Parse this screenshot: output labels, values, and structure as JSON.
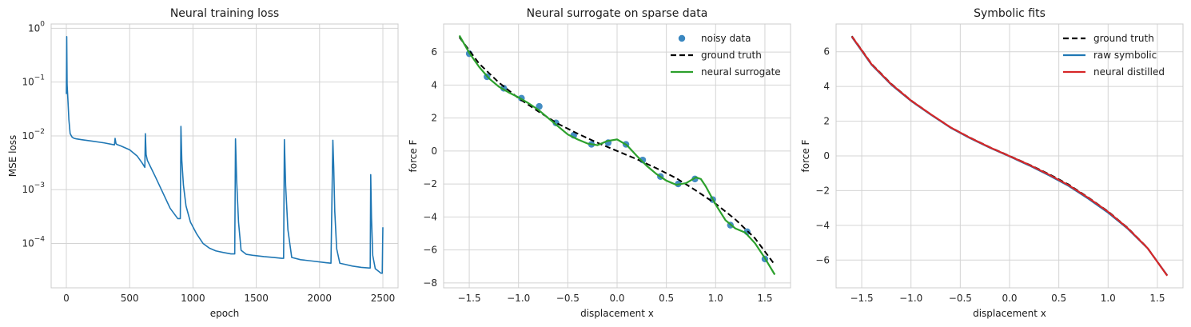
{
  "chart_data": [
    {
      "type": "line",
      "title": "Neural training loss",
      "xlabel": "epoch",
      "ylabel": "MSE loss",
      "yscale": "log",
      "xlim": [
        -120,
        2620
      ],
      "ylim": [
        1.5e-05,
        1.2
      ],
      "xticks": [
        0,
        500,
        1000,
        1500,
        2000,
        2500
      ],
      "yticks": [
        0.0001,
        0.001,
        0.01,
        0.1,
        1
      ],
      "ytick_labels": [
        [
          "10",
          "−4"
        ],
        [
          "10",
          "−3"
        ],
        [
          "10",
          "−2"
        ],
        [
          "10",
          "−1"
        ],
        [
          "10",
          "0"
        ]
      ],
      "grid": true,
      "color": "#1f77b4",
      "series": [
        {
          "x": [
            0,
            3,
            6,
            10,
            15,
            20,
            30,
            45,
            60,
            80,
            120,
            200,
            300,
            380,
            385,
            392,
            400,
            430,
            500,
            560,
            600,
            620,
            624,
            630,
            640,
            660,
            700,
            760,
            820,
            880,
            900,
            905,
            912,
            925,
            945,
            980,
            1030,
            1080,
            1130,
            1180,
            1240,
            1300,
            1330,
            1336,
            1345,
            1360,
            1380,
            1420,
            1480,
            1560,
            1640,
            1700,
            1716,
            1722,
            1732,
            1750,
            1780,
            1850,
            1950,
            2050,
            2090,
            2105,
            2112,
            2120,
            2135,
            2160,
            2200,
            2260,
            2330,
            2390,
            2400,
            2404,
            2410,
            2420,
            2440,
            2470,
            2485,
            2490,
            2495,
            2500
          ],
          "y": [
            0.06,
            0.7,
            0.09,
            0.06,
            0.035,
            0.02,
            0.011,
            0.0095,
            0.009,
            0.0088,
            0.0085,
            0.008,
            0.0074,
            0.0068,
            0.009,
            0.0072,
            0.0069,
            0.0065,
            0.0055,
            0.0042,
            0.0031,
            0.0026,
            0.011,
            0.0045,
            0.0035,
            0.0028,
            0.0018,
            0.0009,
            0.00045,
            0.00029,
            0.00029,
            0.015,
            0.0035,
            0.0012,
            0.0005,
            0.00025,
            0.00015,
            0.0001,
            8.2e-05,
            7.3e-05,
            6.8e-05,
            6.4e-05,
            6.4e-05,
            0.0088,
            0.0015,
            0.00025,
            7.5e-05,
            6.3e-05,
            6e-05,
            5.7e-05,
            5.5e-05,
            5.3e-05,
            5.3e-05,
            0.0085,
            0.0012,
            0.00018,
            5.5e-05,
            5e-05,
            4.7e-05,
            4.4e-05,
            4.3e-05,
            0.0083,
            0.0025,
            0.0004,
            8e-05,
            4.3e-05,
            4.1e-05,
            3.8e-05,
            3.6e-05,
            3.5e-05,
            3.5e-05,
            0.0019,
            0.0003,
            6e-05,
            3.4e-05,
            3e-05,
            2.8e-05,
            2.8e-05,
            2.8e-05,
            0.0002
          ]
        }
      ]
    },
    {
      "type": "scatter",
      "title": "Neural surrogate on sparse data",
      "xlabel": "displacement x",
      "ylabel": "force F",
      "xlim": [
        -1.76,
        1.76
      ],
      "ylim": [
        -8.3,
        7.7
      ],
      "xticks": [
        -1.5,
        -1.0,
        -0.5,
        0.0,
        0.5,
        1.0,
        1.5
      ],
      "xtick_labels": [
        "−1.5",
        "−1.0",
        "−0.5",
        "0.0",
        "0.5",
        "1.0",
        "1.5"
      ],
      "yticks": [
        -8,
        -6,
        -4,
        -2,
        0,
        2,
        4,
        6
      ],
      "ytick_labels": [
        "−8",
        "−6",
        "−4",
        "−2",
        "0",
        "2",
        "4",
        "6"
      ],
      "grid": true,
      "legend": "top-right",
      "series": [
        {
          "name": "noisy data",
          "kind": "points",
          "color": "#3a87c0",
          "x": [
            -1.5,
            -1.32,
            -1.15,
            -0.97,
            -0.79,
            -0.62,
            -0.44,
            -0.26,
            -0.09,
            0.09,
            0.26,
            0.44,
            0.62,
            0.79,
            0.97,
            1.15,
            1.32,
            1.5
          ],
          "y": [
            5.9,
            4.5,
            3.8,
            3.2,
            2.7,
            1.7,
            0.95,
            0.4,
            0.5,
            0.4,
            -0.55,
            -1.55,
            -2.0,
            -1.7,
            -2.95,
            -4.5,
            -4.9,
            -6.55
          ]
        },
        {
          "name": "ground truth",
          "kind": "line",
          "style": "dashed",
          "color": "#000000",
          "x": [
            -1.6,
            -1.4,
            -1.2,
            -1.0,
            -0.8,
            -0.6,
            -0.4,
            -0.2,
            0.0,
            0.2,
            0.4,
            0.6,
            0.8,
            1.0,
            1.2,
            1.4,
            1.6
          ],
          "y": [
            6.9,
            5.3,
            4.15,
            3.2,
            2.4,
            1.65,
            1.05,
            0.5,
            0.0,
            -0.5,
            -1.05,
            -1.65,
            -2.4,
            -3.2,
            -4.15,
            -5.3,
            -6.9
          ]
        },
        {
          "name": "neural surrogate",
          "kind": "line",
          "color": "#2ca02c",
          "x": [
            -1.6,
            -1.5,
            -1.4,
            -1.3,
            -1.2,
            -1.1,
            -1.0,
            -0.9,
            -0.8,
            -0.7,
            -0.6,
            -0.5,
            -0.4,
            -0.3,
            -0.2,
            -0.1,
            0.0,
            0.1,
            0.2,
            0.3,
            0.4,
            0.5,
            0.6,
            0.7,
            0.8,
            0.85,
            0.9,
            1.0,
            1.1,
            1.2,
            1.3,
            1.4,
            1.5,
            1.6
          ],
          "y": [
            7.0,
            5.95,
            5.1,
            4.4,
            3.9,
            3.55,
            3.25,
            2.9,
            2.5,
            2.0,
            1.5,
            1.0,
            0.7,
            0.45,
            0.35,
            0.6,
            0.7,
            0.35,
            -0.3,
            -0.9,
            -1.4,
            -1.8,
            -2.05,
            -1.95,
            -1.6,
            -1.7,
            -2.15,
            -3.25,
            -4.2,
            -4.7,
            -4.95,
            -5.6,
            -6.5,
            -7.5
          ]
        }
      ]
    },
    {
      "type": "line",
      "title": "Symbolic fits",
      "xlabel": "displacement x",
      "ylabel": "force F",
      "xlim": [
        -1.76,
        1.76
      ],
      "ylim": [
        -7.6,
        7.6
      ],
      "xticks": [
        -1.5,
        -1.0,
        -0.5,
        0.0,
        0.5,
        1.0,
        1.5
      ],
      "xtick_labels": [
        "−1.5",
        "−1.0",
        "−0.5",
        "0.0",
        "0.5",
        "1.0",
        "1.5"
      ],
      "yticks": [
        -6,
        -4,
        -2,
        0,
        2,
        4,
        6
      ],
      "ytick_labels": [
        "−6",
        "−4",
        "−2",
        "0",
        "2",
        "4",
        "6"
      ],
      "grid": true,
      "legend": "top-right",
      "series": [
        {
          "name": "ground truth",
          "kind": "line",
          "style": "dashed",
          "color": "#000000",
          "x": [
            -1.6,
            -1.4,
            -1.2,
            -1.0,
            -0.8,
            -0.6,
            -0.4,
            -0.2,
            0.0,
            0.2,
            0.4,
            0.6,
            0.8,
            1.0,
            1.2,
            1.4,
            1.6
          ],
          "y": [
            6.9,
            5.3,
            4.15,
            3.2,
            2.4,
            1.65,
            1.05,
            0.5,
            0.0,
            -0.5,
            -1.05,
            -1.65,
            -2.4,
            -3.2,
            -4.15,
            -5.3,
            -6.9
          ]
        },
        {
          "name": "raw symbolic",
          "kind": "line",
          "color": "#1f77b4",
          "x": [
            -1.6,
            -1.4,
            -1.2,
            -1.0,
            -0.8,
            -0.6,
            -0.4,
            -0.2,
            0.0,
            0.2,
            0.4,
            0.6,
            0.8,
            1.0,
            1.2,
            1.4,
            1.6
          ],
          "y": [
            6.85,
            5.25,
            4.1,
            3.17,
            2.38,
            1.63,
            1.02,
            0.47,
            -0.03,
            -0.55,
            -1.12,
            -1.73,
            -2.47,
            -3.27,
            -4.2,
            -5.32,
            -6.88
          ]
        },
        {
          "name": "neural distilled",
          "kind": "line",
          "color": "#d62728",
          "x": [
            -1.6,
            -1.4,
            -1.2,
            -1.0,
            -0.8,
            -0.6,
            -0.4,
            -0.2,
            0.0,
            0.2,
            0.4,
            0.6,
            0.8,
            1.0,
            1.2,
            1.4,
            1.6
          ],
          "y": [
            6.88,
            5.28,
            4.13,
            3.19,
            2.4,
            1.65,
            1.04,
            0.49,
            -0.01,
            -0.52,
            -1.08,
            -1.69,
            -2.42,
            -3.22,
            -4.17,
            -5.31,
            -6.9
          ]
        }
      ]
    }
  ]
}
